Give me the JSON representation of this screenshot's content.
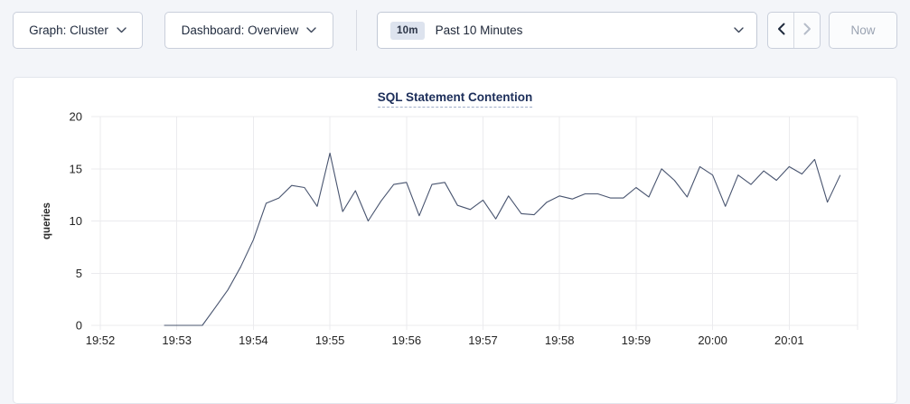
{
  "toolbar": {
    "graph_dropdown": {
      "label": "Graph: Cluster"
    },
    "dashboard_dropdown": {
      "label": "Dashboard: Overview"
    },
    "time_range": {
      "badge": "10m",
      "label": "Past 10 Minutes"
    },
    "now_button": "Now"
  },
  "chart": {
    "title": "SQL Statement Contention"
  },
  "chart_data": {
    "type": "line",
    "title": "SQL Statement Contention",
    "xlabel": "",
    "ylabel": "queries",
    "ylim": [
      0,
      20
    ],
    "yticks": [
      0,
      5,
      10,
      15,
      20
    ],
    "xticks": [
      "19:52",
      "19:53",
      "19:54",
      "19:55",
      "19:56",
      "19:57",
      "19:58",
      "19:59",
      "20:00",
      "20:01"
    ],
    "grid": true,
    "legend_position": "none",
    "line_color": "#48546f",
    "grid_color": "#ebebee",
    "series": [
      {
        "name": "SQL Statement Contention",
        "x_times": [
          "19:52:50",
          "19:53:00",
          "19:53:10",
          "19:53:20",
          "19:53:30",
          "19:53:40",
          "19:53:50",
          "19:54:00",
          "19:54:10",
          "19:54:20",
          "19:54:30",
          "19:54:40",
          "19:54:50",
          "19:55:00",
          "19:55:10",
          "19:55:20",
          "19:55:30",
          "19:55:40",
          "19:55:50",
          "19:56:00",
          "19:56:10",
          "19:56:20",
          "19:56:30",
          "19:56:40",
          "19:56:50",
          "19:57:00",
          "19:57:10",
          "19:57:20",
          "19:57:30",
          "19:57:40",
          "19:57:50",
          "19:58:00",
          "19:58:10",
          "19:58:20",
          "19:58:30",
          "19:58:40",
          "19:58:50",
          "19:59:00",
          "19:59:10",
          "19:59:20",
          "19:59:30",
          "19:59:40",
          "19:59:50",
          "20:00:00",
          "20:00:10",
          "20:00:20",
          "20:00:30",
          "20:00:40",
          "20:00:50",
          "20:01:00",
          "20:01:10",
          "20:01:20",
          "20:01:30",
          "20:01:40"
        ],
        "values": [
          0,
          0,
          0,
          0,
          1.7,
          3.4,
          5.6,
          8.2,
          11.7,
          12.2,
          13.4,
          13.2,
          11.4,
          16.5,
          10.9,
          12.9,
          10.0,
          11.9,
          13.5,
          13.7,
          10.5,
          13.5,
          13.7,
          11.5,
          11.1,
          12.0,
          10.2,
          12.4,
          10.7,
          10.6,
          11.8,
          12.4,
          12.1,
          12.6,
          12.6,
          12.2,
          12.2,
          13.2,
          12.3,
          15.0,
          13.9,
          12.3,
          15.2,
          14.4,
          11.4,
          14.4,
          13.5,
          14.8,
          13.9,
          15.2,
          14.5,
          15.9,
          11.8,
          14.4
        ]
      }
    ]
  }
}
